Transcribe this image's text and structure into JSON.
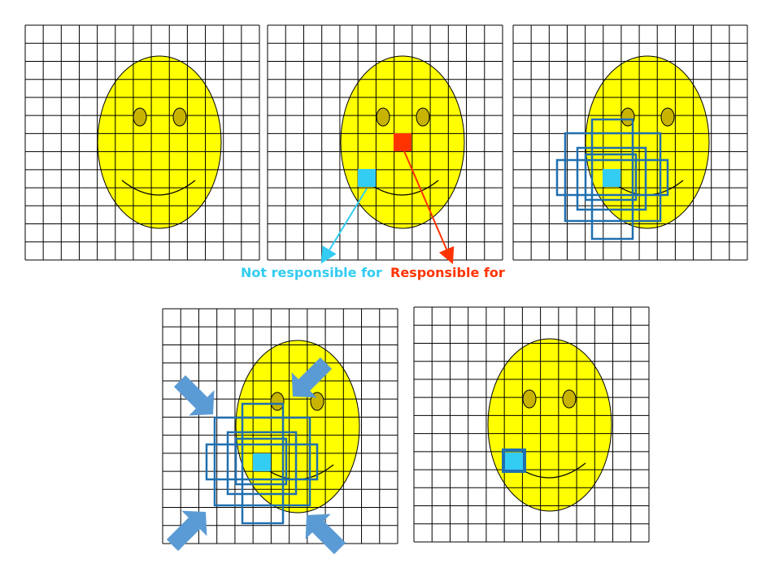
{
  "labels": {
    "not_responsible": "Not responsible for",
    "responsible": "Responsible for"
  },
  "colors": {
    "background": "#ffffff",
    "grid_line": "#000000",
    "face_fill": "#ffff00",
    "eye_fill": "#c8b400",
    "cyan_cell": "#33ccf2",
    "red_cell": "#ff3300",
    "box_stroke": "#1f6fb0",
    "arrow_fill": "#5b9bd5",
    "label_cyan": "#33ccf2",
    "label_red": "#ff3300"
  },
  "panels": [
    {
      "id": "panel-1",
      "grid_cols": 13,
      "grid_rows": 13
    },
    {
      "id": "panel-2",
      "grid_cols": 13,
      "grid_rows": 13
    },
    {
      "id": "panel-3",
      "grid_cols": 13,
      "grid_rows": 13
    },
    {
      "id": "panel-4",
      "grid_cols": 13,
      "grid_rows": 13
    },
    {
      "id": "panel-5",
      "grid_cols": 13,
      "grid_rows": 13
    }
  ]
}
